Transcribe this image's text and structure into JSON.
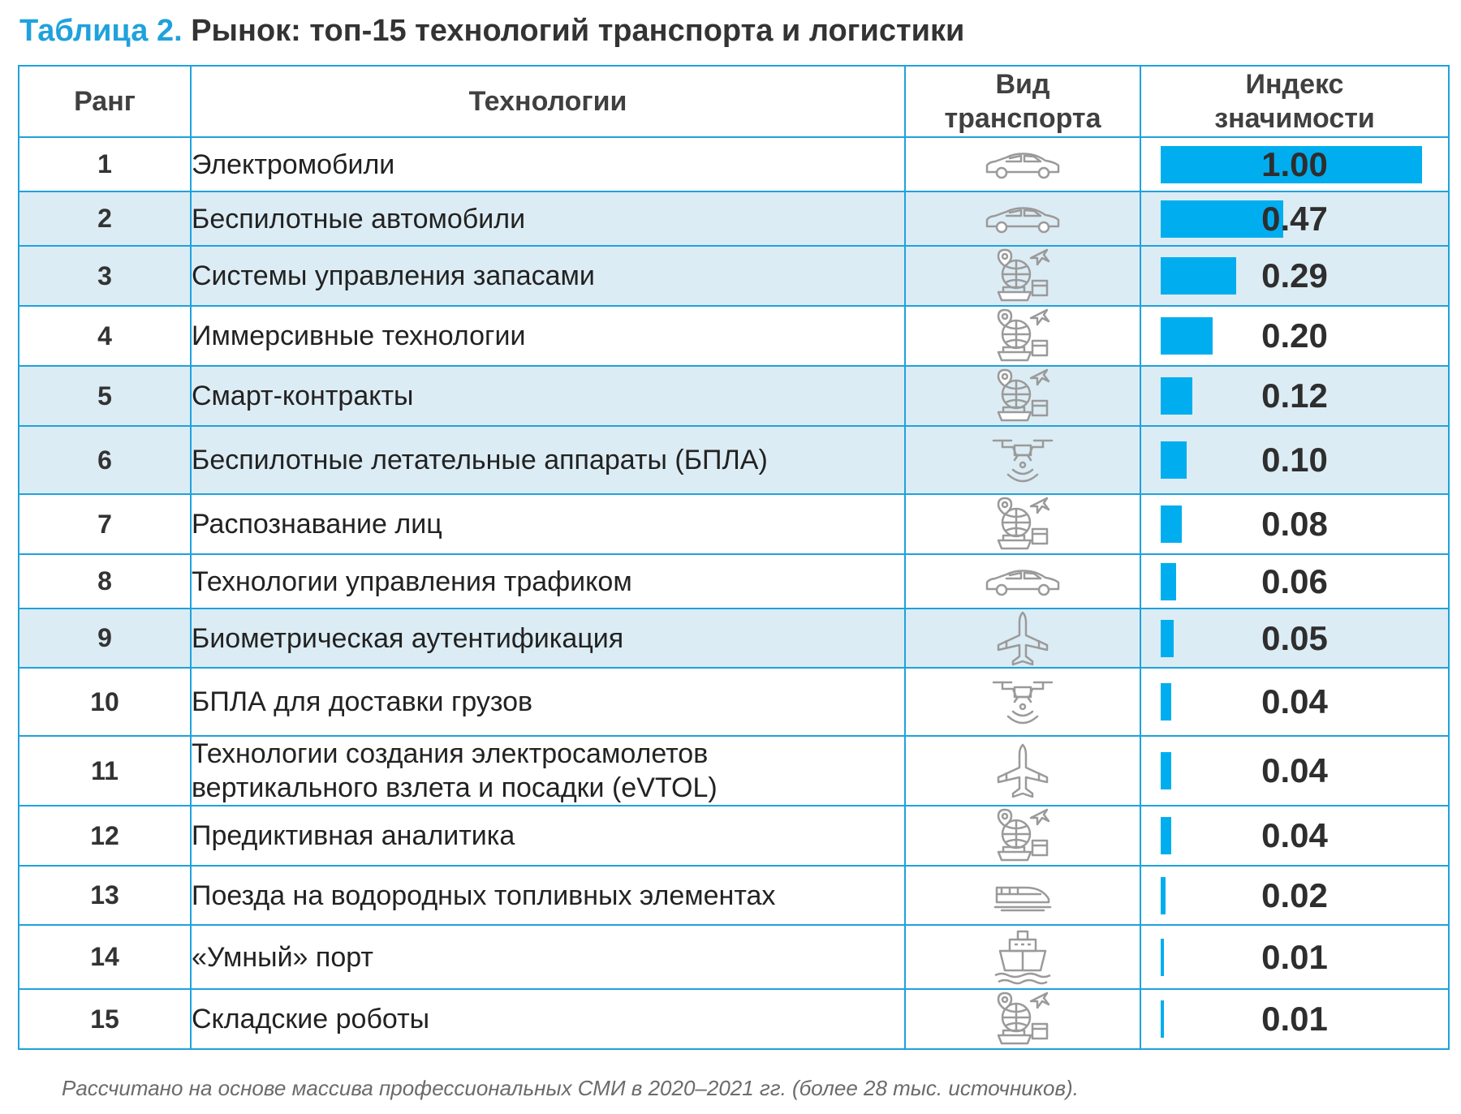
{
  "title": {
    "number": "Таблица 2.",
    "text": "Рынок: топ-15 технологий транспорта и логистики"
  },
  "headers": {
    "rank": "Ранг",
    "tech": "Технологии",
    "transport_line1": "Вид",
    "transport_line2": "транспорта",
    "index_line1": "Индекс",
    "index_line2": "значимости"
  },
  "rows": [
    {
      "rank": "1",
      "tech": [
        "Электромобили"
      ],
      "transport_icon": "car-icon",
      "value": "1.00",
      "index": 1.0,
      "shaded": false
    },
    {
      "rank": "2",
      "tech": [
        "Беспилотные автомобили"
      ],
      "transport_icon": "car-icon",
      "value": "0.47",
      "index": 0.47,
      "shaded": true
    },
    {
      "rank": "3",
      "tech": [
        "Системы управления запасами"
      ],
      "transport_icon": "logistics-icon",
      "value": "0.29",
      "index": 0.29,
      "shaded": true
    },
    {
      "rank": "4",
      "tech": [
        "Иммерсивные технологии"
      ],
      "transport_icon": "logistics-icon",
      "value": "0.20",
      "index": 0.2,
      "shaded": false
    },
    {
      "rank": "5",
      "tech": [
        "Смарт-контракты"
      ],
      "transport_icon": "logistics-icon",
      "value": "0.12",
      "index": 0.12,
      "shaded": true
    },
    {
      "rank": "6",
      "tech": [
        "Беспилотные летательные аппараты (БПЛА)"
      ],
      "transport_icon": "drone-icon",
      "value": "0.10",
      "index": 0.1,
      "shaded": true
    },
    {
      "rank": "7",
      "tech": [
        "Распознавание лиц"
      ],
      "transport_icon": "logistics-icon",
      "value": "0.08",
      "index": 0.08,
      "shaded": false
    },
    {
      "rank": "8",
      "tech": [
        "Технологии управления трафиком"
      ],
      "transport_icon": "car-icon",
      "value": "0.06",
      "index": 0.06,
      "shaded": false
    },
    {
      "rank": "9",
      "tech": [
        "Биометрическая аутентификация"
      ],
      "transport_icon": "airplane-icon",
      "value": "0.05",
      "index": 0.05,
      "shaded": true
    },
    {
      "rank": "10",
      "tech": [
        "БПЛА для доставки грузов"
      ],
      "transport_icon": "drone-icon",
      "value": "0.04",
      "index": 0.04,
      "shaded": false
    },
    {
      "rank": "11",
      "tech": [
        "Технологии создания электросамолетов",
        "вертикального взлета и посадки (eVTOL)"
      ],
      "transport_icon": "airplane-icon",
      "value": "0.04",
      "index": 0.04,
      "shaded": false
    },
    {
      "rank": "12",
      "tech": [
        "Предиктивная аналитика"
      ],
      "transport_icon": "logistics-icon",
      "value": "0.04",
      "index": 0.04,
      "shaded": false
    },
    {
      "rank": "13",
      "tech": [
        "Поезда на водородных топливных элементах"
      ],
      "transport_icon": "train-icon",
      "value": "0.02",
      "index": 0.02,
      "shaded": false
    },
    {
      "rank": "14",
      "tech": [
        "«Умный» порт"
      ],
      "transport_icon": "ship-icon",
      "value": "0.01",
      "index": 0.01,
      "shaded": false
    },
    {
      "rank": "15",
      "tech": [
        "Складские роботы"
      ],
      "transport_icon": "logistics-icon",
      "value": "0.01",
      "index": 0.01,
      "shaded": false
    }
  ],
  "footnote": "Рассчитано на основе массива профессиональных СМИ в 2020–2021 гг. (более 28 тыс. источников).",
  "colors": {
    "accent": "#1fa2dc",
    "bar": "#00aeef",
    "row_shade": "#dcecf4",
    "icon": "#9a9a9a"
  }
}
